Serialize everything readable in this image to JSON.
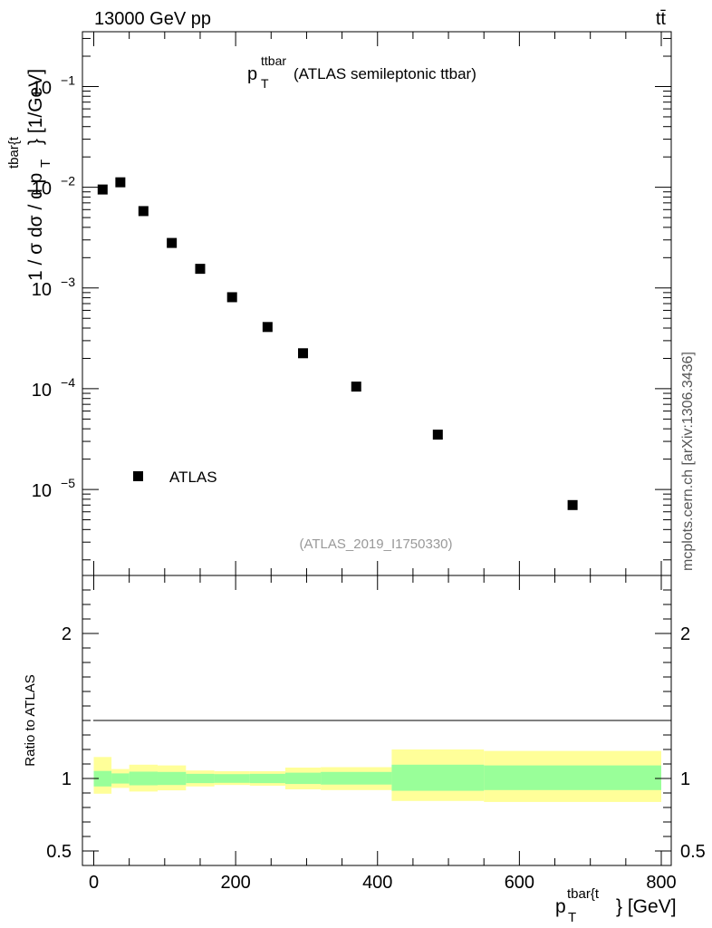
{
  "header": {
    "left": "13000 GeV pp",
    "right": "tt̄"
  },
  "side_label": "mcplots.cern.ch [arXiv:1306.3436]",
  "chart_data": [
    {
      "type": "scatter",
      "title_main": "p",
      "title_sub": "T",
      "title_sup": "ttbar",
      "title_rest": " (ATLAS semileptonic ttbar)",
      "ylabel": "1 / σ dσ / d p",
      "ylabel_sub": "T",
      "ylabel_sup": "tbar{t",
      "ylabel_unit": "} [1/GeV]",
      "yscale": "log",
      "ylim": [
        1.4e-06,
        0.35
      ],
      "xlim": [
        -15,
        810
      ],
      "yticks": [
        {
          "base": "10",
          "exp": "−1",
          "value": 0.1
        },
        {
          "base": "10",
          "exp": "−2",
          "value": 0.01
        },
        {
          "base": "10",
          "exp": "−3",
          "value": 0.001
        },
        {
          "base": "10",
          "exp": "−4",
          "value": 0.0001
        },
        {
          "base": "10",
          "exp": "−5",
          "value": 1e-05
        }
      ],
      "legend": {
        "label": "ATLAS",
        "position": "bottom-left"
      },
      "watermark": "(ATLAS_2019_I1750330)",
      "series": [
        {
          "name": "ATLAS",
          "x": [
            12.5,
            37.5,
            70,
            110,
            150,
            195,
            245,
            295,
            370,
            485,
            675
          ],
          "y": [
            0.0095,
            0.0112,
            0.0058,
            0.0028,
            0.00155,
            0.00081,
            0.00041,
            0.000225,
            0.000105,
            3.5e-05,
            7e-06
          ]
        }
      ]
    },
    {
      "type": "area",
      "ylabel": "Ratio to ATLAS",
      "xlabel": "p",
      "xlabel_sub": "T",
      "xlabel_sup": "tbar{t",
      "xlabel_unit": "} [GeV]",
      "ylim": [
        0.4,
        2.4
      ],
      "xlim": [
        -15,
        810
      ],
      "xticks": [
        "0",
        "200",
        "400",
        "600",
        "800"
      ],
      "xtick_values": [
        0,
        200,
        400,
        600,
        800
      ],
      "yticks": [
        "2",
        "1",
        "0.5"
      ],
      "ytick_values": [
        2,
        1,
        0.5
      ],
      "bins": [
        {
          "lo": 0,
          "hi": 25,
          "inner": [
            0.945,
            1.052
          ],
          "outer": [
            0.895,
            1.148
          ]
        },
        {
          "lo": 25,
          "hi": 50,
          "inner": [
            0.965,
            1.035
          ],
          "outer": [
            0.935,
            1.065
          ]
        },
        {
          "lo": 50,
          "hi": 90,
          "inner": [
            0.953,
            1.047
          ],
          "outer": [
            0.91,
            1.095
          ]
        },
        {
          "lo": 90,
          "hi": 130,
          "inner": [
            0.955,
            1.045
          ],
          "outer": [
            0.918,
            1.09
          ]
        },
        {
          "lo": 130,
          "hi": 170,
          "inner": [
            0.968,
            1.032
          ],
          "outer": [
            0.945,
            1.055
          ]
        },
        {
          "lo": 170,
          "hi": 220,
          "inner": [
            0.97,
            1.03
          ],
          "outer": [
            0.955,
            1.05
          ]
        },
        {
          "lo": 220,
          "hi": 270,
          "inner": [
            0.968,
            1.032
          ],
          "outer": [
            0.95,
            1.05
          ]
        },
        {
          "lo": 270,
          "hi": 320,
          "inner": [
            0.962,
            1.04
          ],
          "outer": [
            0.925,
            1.075
          ]
        },
        {
          "lo": 320,
          "hi": 420,
          "inner": [
            0.958,
            1.045
          ],
          "outer": [
            0.92,
            1.078
          ]
        },
        {
          "lo": 420,
          "hi": 550,
          "inner": [
            0.915,
            1.095
          ],
          "outer": [
            0.845,
            1.2
          ]
        },
        {
          "lo": 550,
          "hi": 800,
          "inner": [
            0.92,
            1.09
          ],
          "outer": [
            0.838,
            1.19
          ]
        }
      ],
      "colors": {
        "inner": "#99ff99",
        "outer": "#ffff99",
        "line": "#000000"
      }
    }
  ]
}
